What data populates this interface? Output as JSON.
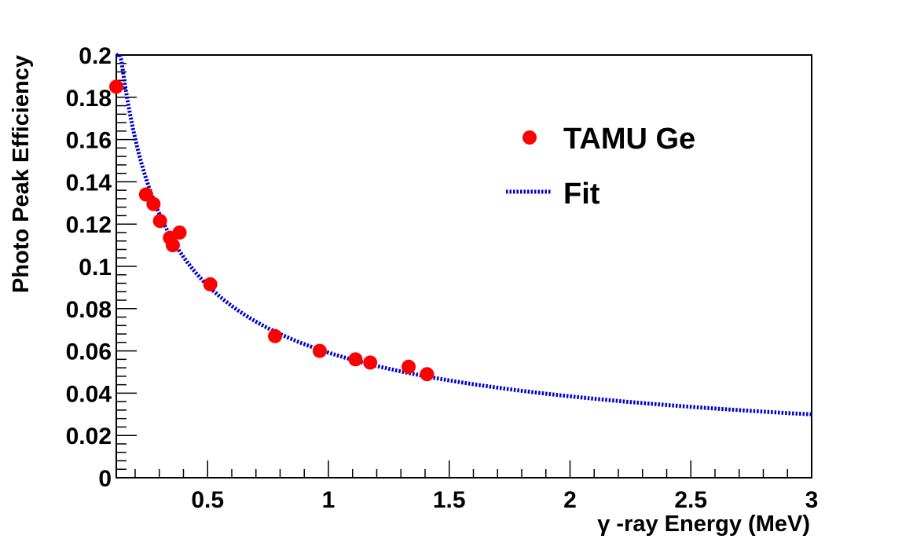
{
  "chart_data": {
    "type": "scatter",
    "title": "",
    "xlabel": "γ -ray Energy (MeV)",
    "ylabel": "Photo Peak Efficiency",
    "xlim": [
      0.122,
      3.0
    ],
    "ylim": [
      0,
      0.2
    ],
    "x_ticks": [
      0.5,
      1,
      1.5,
      2,
      2.5,
      3
    ],
    "x_tick_labels": [
      "0.5",
      "1",
      "1.5",
      "2",
      "2.5",
      "3"
    ],
    "y_ticks": [
      0,
      0.02,
      0.04,
      0.06,
      0.08,
      0.1,
      0.12,
      0.14,
      0.16,
      0.18,
      0.2
    ],
    "y_tick_labels": [
      "0",
      "0.02",
      "0.04",
      "0.06",
      "0.08",
      "0.1",
      "0.12",
      "0.14",
      "0.16",
      "0.18",
      "0.2"
    ],
    "grid": false,
    "legend_position": "top-right",
    "series": [
      {
        "name": "TAMU Ge",
        "kind": "points",
        "color": "#ff0000",
        "x": [
          0.122,
          0.245,
          0.276,
          0.303,
          0.344,
          0.356,
          0.384,
          0.511,
          0.779,
          0.964,
          1.112,
          1.173,
          1.332,
          1.408
        ],
        "y": [
          0.185,
          0.134,
          0.1295,
          0.1215,
          0.1135,
          0.11,
          0.116,
          0.0915,
          0.067,
          0.06,
          0.056,
          0.0545,
          0.0525,
          0.049
        ]
      },
      {
        "name": "Fit",
        "kind": "line",
        "style": "dotted",
        "color": "#0000cc",
        "function": "a * x^b",
        "a": 0.0592,
        "b": -0.62,
        "x_range": [
          0.122,
          3.0
        ]
      }
    ]
  }
}
